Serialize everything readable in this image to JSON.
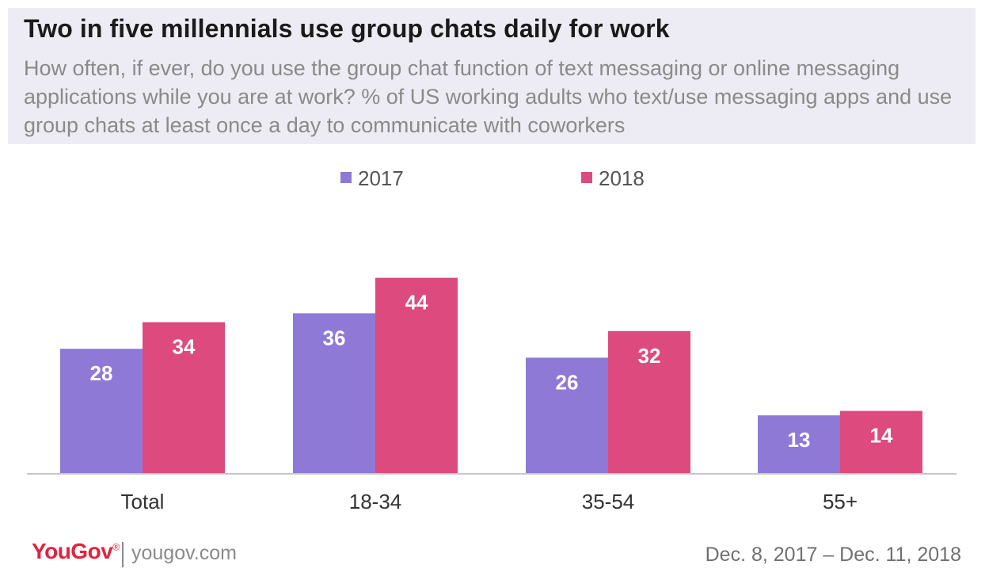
{
  "header": {
    "title": "Two in five millennials use group chats daily for work",
    "subtitle": "How often, if ever, do you use the group chat function of text messaging or online messaging applications while you are at work? % of US working adults who text/use messaging apps and use group chats at least once a day to communicate with coworkers"
  },
  "chart_data": {
    "type": "bar",
    "categories": [
      "Total",
      "18-34",
      "35-54",
      "55+"
    ],
    "series": [
      {
        "name": "2017",
        "values": [
          28,
          36,
          26,
          13
        ],
        "color": "#8f79d6"
      },
      {
        "name": "2018",
        "values": [
          34,
          44,
          32,
          14
        ],
        "color": "#dd4a7d"
      }
    ],
    "ylim": [
      0,
      50
    ],
    "grid": false,
    "legend": "top-center",
    "data_labels": true,
    "data_label_color": "#ffffff"
  },
  "footer": {
    "brand": "YouGov",
    "registered": "®",
    "url": "yougov.com",
    "date_range": "Dec. 8, 2017 – Dec. 11, 2018"
  }
}
